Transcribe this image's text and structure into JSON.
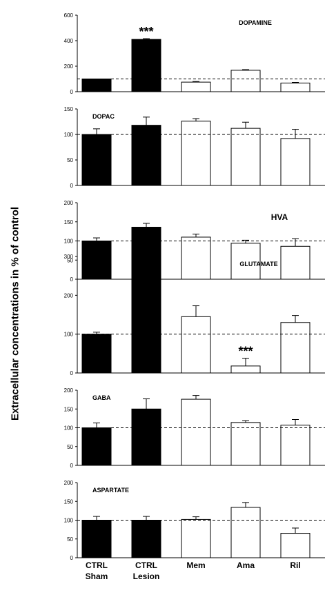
{
  "y_axis_label": "Extracellular concentrations in  % of control",
  "categories": [
    {
      "line1": "CTRL",
      "line2": "Sham"
    },
    {
      "line1": "CTRL",
      "line2": "Lesion"
    },
    {
      "line1": "Mem",
      "line2": ""
    },
    {
      "line1": "Ama",
      "line2": ""
    },
    {
      "line1": "Ril",
      "line2": ""
    }
  ],
  "colors": {
    "filled": "#000000",
    "open": "#ffffff",
    "stroke": "#000000"
  },
  "chart_data": [
    {
      "type": "bar",
      "title": "DOPAMINE",
      "title_position": "top-right",
      "ylim": [
        0,
        600
      ],
      "ticks": [
        0,
        200,
        400,
        600
      ],
      "reference_line": 100,
      "categories": [
        "CTRL Sham",
        "CTRL Lesion",
        "Mem",
        "Ama",
        "Ril"
      ],
      "values": [
        100,
        410,
        75,
        168,
        68
      ],
      "errors": [
        0,
        6,
        5,
        5,
        5
      ],
      "fill": [
        "filled",
        "filled",
        "open",
        "open",
        "open"
      ],
      "annotations": [
        {
          "category": 1,
          "text": "***"
        }
      ]
    },
    {
      "type": "bar",
      "title": "DOPAC",
      "title_position": "top-left",
      "ylim": [
        0,
        150
      ],
      "ticks": [
        0,
        50,
        100,
        150
      ],
      "reference_line": 100,
      "categories": [
        "CTRL Sham",
        "CTRL Lesion",
        "Mem",
        "Ama",
        "Ril"
      ],
      "values": [
        100,
        118,
        126,
        112,
        92
      ],
      "errors": [
        11,
        16,
        5,
        12,
        18
      ],
      "fill": [
        "filled",
        "filled",
        "open",
        "open",
        "open"
      ],
      "annotations": []
    },
    {
      "type": "bar",
      "title": "HVA",
      "title_position": "top-right",
      "ylim": [
        0,
        200
      ],
      "ticks": [
        0,
        50,
        100,
        150,
        200
      ],
      "reference_line": 100,
      "categories": [
        "CTRL Sham",
        "CTRL Lesion",
        "Mem",
        "Ama",
        "Ril"
      ],
      "values": [
        100,
        136,
        110,
        94,
        86
      ],
      "errors": [
        8,
        10,
        8,
        8,
        20
      ],
      "fill": [
        "filled",
        "filled",
        "open",
        "open",
        "open"
      ],
      "annotations": []
    },
    {
      "type": "bar",
      "title": "GLUTAMATE",
      "title_position": "top-right",
      "ylim": [
        0,
        300
      ],
      "ticks": [
        0,
        100,
        200,
        300
      ],
      "reference_line": 100,
      "categories": [
        "CTRL Sham",
        "CTRL Lesion",
        "Mem",
        "Ama",
        "Ril"
      ],
      "values": [
        100,
        243,
        145,
        18,
        130
      ],
      "errors": [
        5,
        20,
        28,
        20,
        18
      ],
      "fill": [
        "filled",
        "filled",
        "open",
        "open",
        "open"
      ],
      "annotations": [
        {
          "category": 1,
          "text": "***"
        },
        {
          "category": 3,
          "text": "***"
        }
      ]
    },
    {
      "type": "bar",
      "title": "GABA",
      "title_position": "top-left",
      "ylim": [
        0,
        200
      ],
      "ticks": [
        0,
        50,
        100,
        150,
        200
      ],
      "reference_line": 100,
      "categories": [
        "CTRL Sham",
        "CTRL Lesion",
        "Mem",
        "Ama",
        "Ril"
      ],
      "values": [
        100,
        150,
        176,
        114,
        107
      ],
      "errors": [
        13,
        27,
        10,
        5,
        15
      ],
      "fill": [
        "filled",
        "filled",
        "open",
        "open",
        "open"
      ],
      "annotations": []
    },
    {
      "type": "bar",
      "title": "ASPARTATE",
      "title_position": "top-left",
      "ylim": [
        0,
        200
      ],
      "ticks": [
        0,
        50,
        100,
        150,
        200
      ],
      "reference_line": 100,
      "categories": [
        "CTRL Sham",
        "CTRL Lesion",
        "Mem",
        "Ama",
        "Ril"
      ],
      "values": [
        100,
        100,
        102,
        134,
        65
      ],
      "errors": [
        10,
        10,
        7,
        13,
        14
      ],
      "fill": [
        "filled",
        "filled",
        "open",
        "open",
        "open"
      ],
      "annotations": []
    }
  ]
}
